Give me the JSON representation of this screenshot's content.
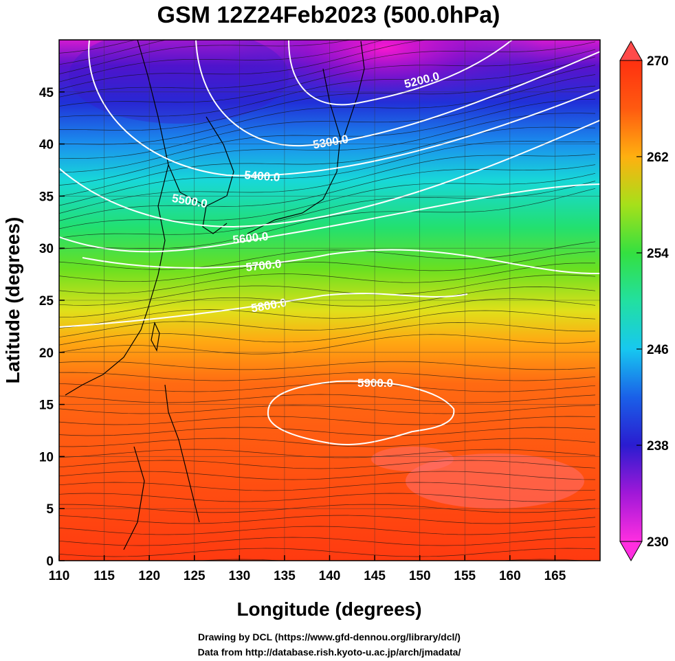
{
  "title": "GSM 12Z24Feb2023 (500.0hPa)",
  "xlabel": "Longitude (degrees)",
  "ylabel": "Latitude  (degrees)",
  "x_ticks": [
    "110",
    "115",
    "120",
    "125",
    "130",
    "135",
    "140",
    "145",
    "150",
    "155",
    "160",
    "165"
  ],
  "y_ticks": [
    "0",
    "5",
    "10",
    "15",
    "20",
    "25",
    "30",
    "35",
    "40",
    "45"
  ],
  "colorbar": {
    "min": 230,
    "max": 270,
    "tick_labels": [
      "230",
      "238",
      "246",
      "254",
      "262",
      "270"
    ],
    "colors": [
      "#ff2ee0",
      "#b01cd8",
      "#5a10d0",
      "#1f2fd8",
      "#1a7ae8",
      "#17c8f0",
      "#1ee8c8",
      "#2ee86a",
      "#46e028",
      "#9ce01c",
      "#e8e01a",
      "#ffb010",
      "#ff7a10",
      "#ff4a10",
      "#ff3010"
    ]
  },
  "contours": [
    {
      "value": "5200.0"
    },
    {
      "value": "5300.0"
    },
    {
      "value": "5400.0"
    },
    {
      "value": "5500.0"
    },
    {
      "value": "5600.0"
    },
    {
      "value": "5700.0"
    },
    {
      "value": "5800.0"
    },
    {
      "value": "5900.0"
    }
  ],
  "credits": {
    "line1": "Drawing by DCL (https://www.gfd-dennou.org/library/dcl/)",
    "line2": "Data from http://database.rish.kyoto-u.ac.jp/arch/jmadata/"
  },
  "map_extent": {
    "lon": [
      110,
      170
    ],
    "lat": [
      0,
      50
    ]
  }
}
